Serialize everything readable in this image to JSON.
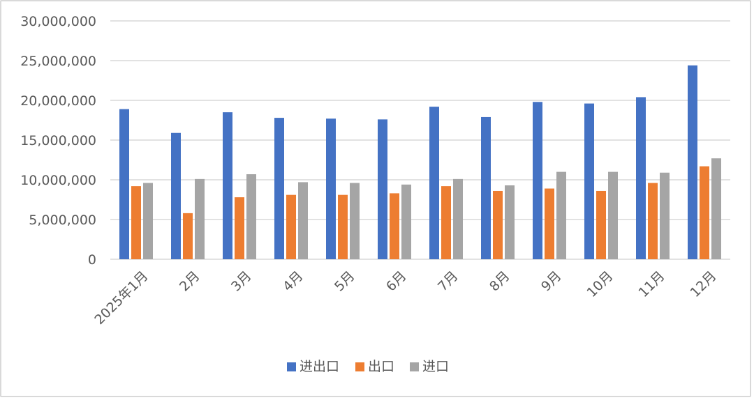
{
  "chart_data": {
    "type": "bar",
    "categories": [
      "2025年1月",
      "2月",
      "3月",
      "4月",
      "5月",
      "6月",
      "7月",
      "8月",
      "9月",
      "10月",
      "11月",
      "12月"
    ],
    "series": [
      {
        "name": "进出口",
        "color": "#4472c4",
        "values": [
          18900000,
          15900000,
          18500000,
          17800000,
          17700000,
          17600000,
          19200000,
          17900000,
          19800000,
          19600000,
          20400000,
          24400000
        ]
      },
      {
        "name": "出口",
        "color": "#ed7d31",
        "values": [
          9200000,
          5800000,
          7800000,
          8100000,
          8100000,
          8300000,
          9200000,
          8600000,
          8900000,
          8600000,
          9600000,
          11700000
        ]
      },
      {
        "name": "进口",
        "color": "#a5a5a5",
        "values": [
          9600000,
          10100000,
          10700000,
          9700000,
          9600000,
          9400000,
          10100000,
          9300000,
          11000000,
          11000000,
          10900000,
          12700000
        ]
      }
    ],
    "ylim": [
      0,
      30000000
    ],
    "yticks": [
      0,
      5000000,
      10000000,
      15000000,
      20000000,
      25000000,
      30000000
    ],
    "ytick_labels": [
      "0",
      "5,000,000",
      "10,000,000",
      "15,000,000",
      "20,000,000",
      "25,000,000",
      "30,000,000"
    ],
    "grid": true,
    "legend_position": "bottom",
    "title": "",
    "xlabel": "",
    "ylabel": ""
  }
}
